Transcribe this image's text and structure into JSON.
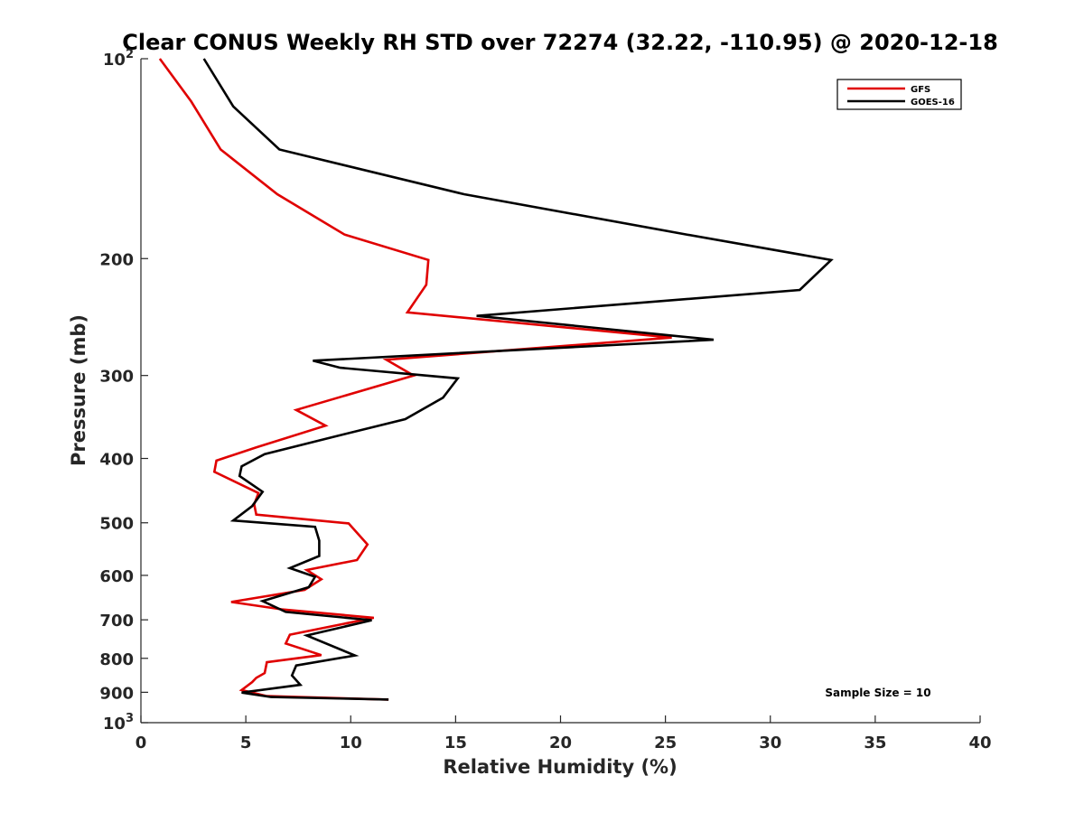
{
  "chart_data": {
    "type": "line",
    "title": "Clear CONUS Weekly RH STD over 72274 (32.22, -110.95) @ 2020-12-18",
    "xlabel": "Relative Humidity (%)",
    "ylabel": "Pressure (mb)",
    "xlim": [
      0,
      40
    ],
    "ylim": [
      100,
      1000
    ],
    "yscale": "log",
    "y_reversed": true,
    "grid": false,
    "x_ticks": [
      0,
      5,
      10,
      15,
      20,
      25,
      30,
      35,
      40
    ],
    "x_tick_labels": [
      "0",
      "5",
      "10",
      "15",
      "20",
      "25",
      "30",
      "35",
      "40"
    ],
    "y_ticks": [
      {
        "value": 100,
        "label": "10",
        "sup": "2"
      },
      {
        "value": 200,
        "label": "200",
        "sup": ""
      },
      {
        "value": 300,
        "label": "300",
        "sup": ""
      },
      {
        "value": 400,
        "label": "400",
        "sup": ""
      },
      {
        "value": 500,
        "label": "500",
        "sup": ""
      },
      {
        "value": 600,
        "label": "600",
        "sup": ""
      },
      {
        "value": 700,
        "label": "700",
        "sup": ""
      },
      {
        "value": 800,
        "label": "800",
        "sup": ""
      },
      {
        "value": 900,
        "label": "900",
        "sup": ""
      },
      {
        "value": 1000,
        "label": "10",
        "sup": "3"
      }
    ],
    "legend_position": "top-right",
    "annotation": "Sample Size = 10",
    "series": [
      {
        "name": "GFS",
        "color": "#e00000",
        "points": [
          [
            0.9,
            100
          ],
          [
            2.4,
            116
          ],
          [
            3.8,
            137
          ],
          [
            6.5,
            160
          ],
          [
            9.7,
            184
          ],
          [
            13.7,
            201
          ],
          [
            13.6,
            219
          ],
          [
            12.7,
            241
          ],
          [
            25.3,
            263
          ],
          [
            11.7,
            284
          ],
          [
            13.0,
            300
          ],
          [
            7.4,
            338
          ],
          [
            8.8,
            357
          ],
          [
            5.5,
            385
          ],
          [
            3.6,
            403
          ],
          [
            3.5,
            419
          ],
          [
            5.6,
            451
          ],
          [
            5.4,
            469
          ],
          [
            5.5,
            486
          ],
          [
            9.9,
            501
          ],
          [
            10.8,
            539
          ],
          [
            10.3,
            569
          ],
          [
            7.9,
            589
          ],
          [
            8.6,
            608
          ],
          [
            7.8,
            631
          ],
          [
            4.3,
            658
          ],
          [
            6.7,
            675
          ],
          [
            11.1,
            695
          ],
          [
            7.1,
            737
          ],
          [
            6.9,
            760
          ],
          [
            8.6,
            791
          ],
          [
            6.0,
            811
          ],
          [
            5.9,
            842
          ],
          [
            5.5,
            856
          ],
          [
            5.3,
            869
          ],
          [
            4.8,
            893
          ],
          [
            6.0,
            912
          ],
          [
            11.8,
            923
          ]
        ]
      },
      {
        "name": "GOES-16",
        "color": "#000000",
        "points": [
          [
            3.0,
            100
          ],
          [
            4.4,
            118
          ],
          [
            6.6,
            137
          ],
          [
            15.4,
            160
          ],
          [
            26.0,
            184
          ],
          [
            32.9,
            201
          ],
          [
            31.4,
            223
          ],
          [
            16.0,
            244
          ],
          [
            27.3,
            265
          ],
          [
            8.2,
            285
          ],
          [
            9.5,
            292
          ],
          [
            15.1,
            303
          ],
          [
            14.4,
            324
          ],
          [
            12.6,
            349
          ],
          [
            8.9,
            373
          ],
          [
            5.9,
            394
          ],
          [
            4.8,
            411
          ],
          [
            4.7,
            425
          ],
          [
            5.8,
            449
          ],
          [
            5.3,
            472
          ],
          [
            4.4,
            496
          ],
          [
            8.3,
            507
          ],
          [
            8.5,
            532
          ],
          [
            8.5,
            561
          ],
          [
            7.1,
            585
          ],
          [
            8.3,
            603
          ],
          [
            8.0,
            625
          ],
          [
            5.8,
            656
          ],
          [
            6.9,
            681
          ],
          [
            11.0,
            701
          ],
          [
            7.9,
            739
          ],
          [
            10.2,
            792
          ],
          [
            7.4,
            820
          ],
          [
            7.2,
            849
          ],
          [
            7.6,
            877
          ],
          [
            4.8,
            901
          ],
          [
            6.2,
            915
          ],
          [
            11.8,
            923
          ]
        ]
      }
    ]
  }
}
